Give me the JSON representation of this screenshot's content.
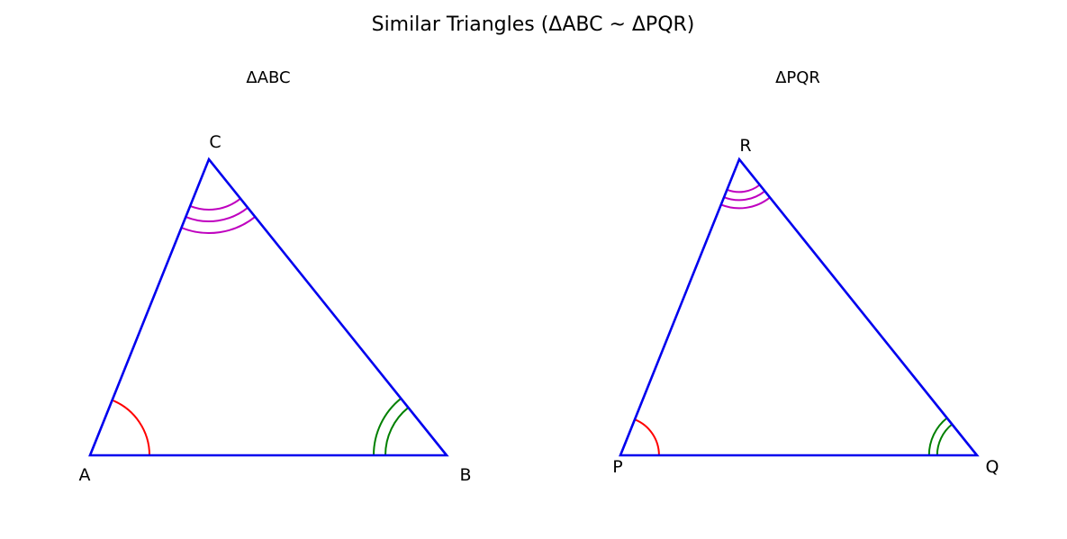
{
  "title": "Similar Triangles (ΔABC ~ ΔPQR)",
  "colors": {
    "triangle": "#0000ee",
    "angle_1": "#ff0000",
    "angle_2": "#008000",
    "angle_3": "#bf00bf",
    "text": "#000000",
    "background": "#ffffff"
  },
  "triangles": [
    {
      "name": "ΔABC",
      "vertices": [
        "A",
        "B",
        "C"
      ],
      "angle_marks": {
        "A": 1,
        "B": 2,
        "C": 3
      }
    },
    {
      "name": "ΔPQR",
      "vertices": [
        "P",
        "Q",
        "R"
      ],
      "angle_marks": {
        "P": 1,
        "Q": 2,
        "R": 3
      }
    }
  ]
}
